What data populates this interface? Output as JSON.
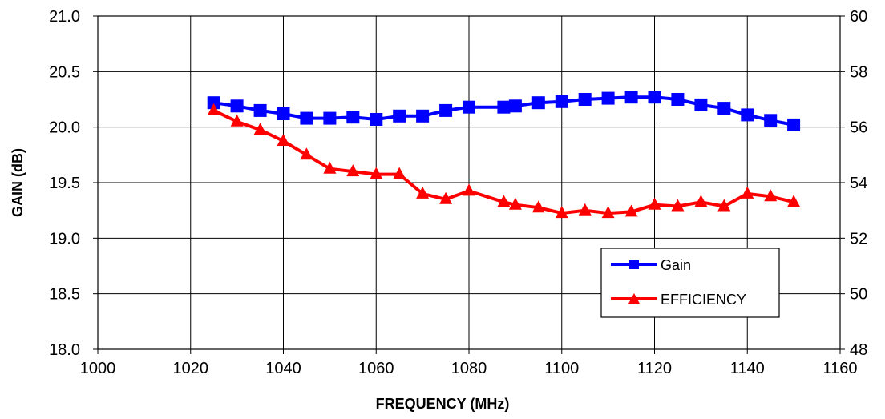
{
  "chart_data": {
    "type": "line",
    "title": "",
    "xlabel": "FREQUENCY  (MHz)",
    "ylabel": "GAIN (dB)",
    "y2label": "",
    "xlim": [
      1000,
      1160
    ],
    "ylim": [
      18.0,
      21.0
    ],
    "y2lim": [
      48,
      60
    ],
    "x_ticks": [
      "1000",
      "1020",
      "1040",
      "1060",
      "1080",
      "1100",
      "1120",
      "1140",
      "1160"
    ],
    "y_ticks": [
      "18.0",
      "18.5",
      "19.0",
      "19.5",
      "20.0",
      "20.5",
      "21.0"
    ],
    "y2_ticks": [
      "48",
      "50",
      "52",
      "54",
      "56",
      "58",
      "60"
    ],
    "grid": true,
    "legend_position": "lower-right",
    "series": [
      {
        "name": "Gain",
        "axis": "left",
        "color": "#0000ff",
        "marker": "square",
        "x": [
          1025,
          1030,
          1035,
          1040,
          1045,
          1050,
          1055,
          1060,
          1065,
          1070,
          1075,
          1080,
          1087.5,
          1090,
          1095,
          1100,
          1105,
          1110,
          1115,
          1120,
          1125,
          1130,
          1135,
          1140,
          1145,
          1150
        ],
        "values": [
          20.22,
          20.19,
          20.15,
          20.12,
          20.08,
          20.08,
          20.09,
          20.07,
          20.1,
          20.1,
          20.15,
          20.18,
          20.18,
          20.19,
          20.22,
          20.23,
          20.25,
          20.26,
          20.27,
          20.27,
          20.25,
          20.2,
          20.17,
          20.11,
          20.06,
          20.02
        ]
      },
      {
        "name": "EFFICIENCY",
        "axis": "right",
        "color": "#ff0000",
        "marker": "triangle",
        "x": [
          1025,
          1030,
          1035,
          1040,
          1045,
          1050,
          1055,
          1060,
          1065,
          1070,
          1075,
          1080,
          1087.5,
          1090,
          1095,
          1100,
          1105,
          1110,
          1115,
          1120,
          1125,
          1130,
          1135,
          1140,
          1145,
          1150
        ],
        "values": [
          56.6,
          56.2,
          55.9,
          55.5,
          55.0,
          54.5,
          54.4,
          54.3,
          54.3,
          53.6,
          53.4,
          53.7,
          53.3,
          53.2,
          53.1,
          52.9,
          53.0,
          52.9,
          52.95,
          53.2,
          53.15,
          53.3,
          53.15,
          53.6,
          53.5,
          53.3
        ]
      }
    ]
  }
}
